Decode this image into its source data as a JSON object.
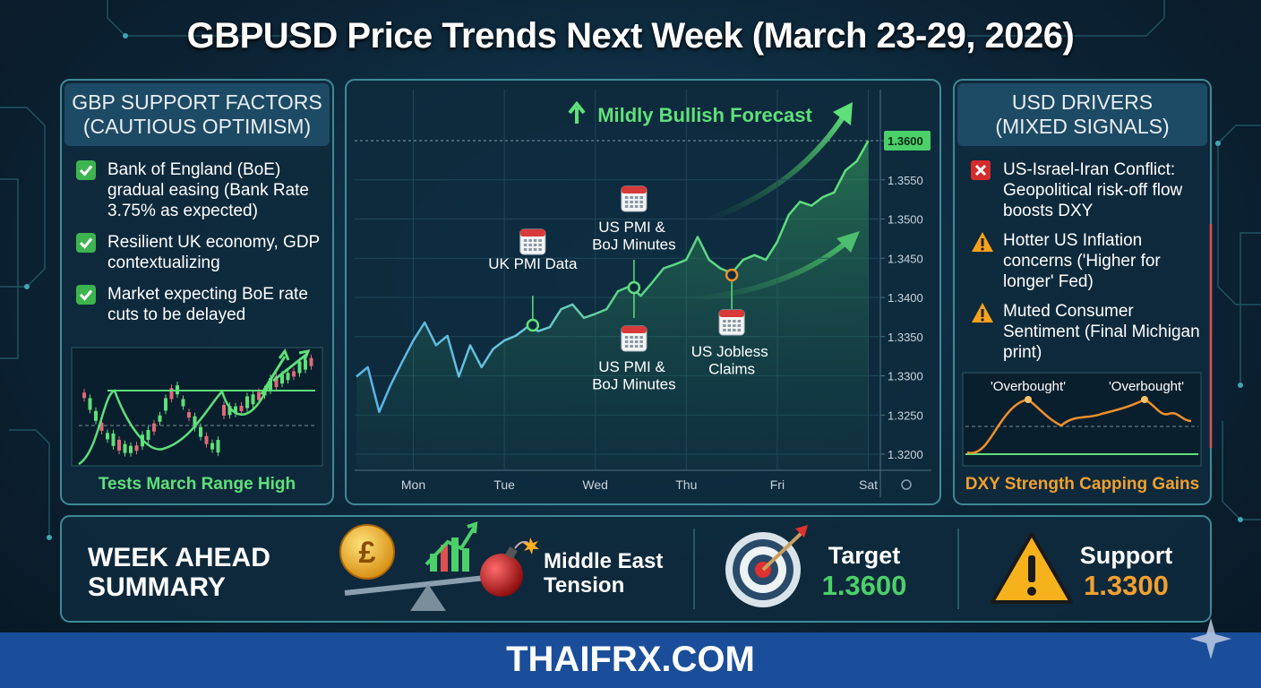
{
  "title": "GBPUSD Price Trends Next Week (March 23-29, 2026)",
  "gbp_panel": {
    "header": [
      "GBP SUPPORT FACTORS",
      "(CAUTIOUS OPTIMISM)"
    ],
    "items": [
      "Bank of England (BoE) gradual easing (Bank Rate 3.75% as expected)",
      "Resilient UK economy, GDP contextualizing",
      "Market expecting BoE rate cuts to be delayed"
    ],
    "caption": "Tests March Range High"
  },
  "chart_data": {
    "type": "line",
    "annotations": [
      "Mildly Bullish Forecast",
      "UK PMI Data",
      "US PMI & BoJ Minutes",
      "US PMI & BoJ Minutes",
      "US Jobless Claims"
    ],
    "categories": [
      null,
      null,
      null,
      null,
      null,
      "Mon",
      null,
      null,
      null,
      null,
      null,
      null,
      null,
      "Tue",
      null,
      null,
      null,
      null,
      null,
      null,
      null,
      "Wed",
      null,
      null,
      null,
      null,
      null,
      null,
      null,
      "Thu",
      null,
      null,
      null,
      null,
      null,
      null,
      null,
      "Fri",
      null,
      null,
      null,
      null,
      null,
      null,
      null,
      "Sat"
    ],
    "values": [
      1.3299,
      1.3311,
      1.3254,
      1.3288,
      1.3317,
      1.3345,
      1.3368,
      1.3339,
      1.3351,
      1.3299,
      1.3339,
      1.3311,
      1.3334,
      1.3345,
      1.3351,
      1.3362,
      1.3357,
      1.3362,
      1.3385,
      1.3391,
      1.3374,
      1.3379,
      1.3385,
      1.3408,
      1.3414,
      1.3402,
      1.3419,
      1.3437,
      1.3442,
      1.3448,
      1.3477,
      1.3448,
      1.3437,
      1.3431,
      1.3448,
      1.3454,
      1.3448,
      1.3471,
      1.3505,
      1.3522,
      1.3517,
      1.3528,
      1.3534,
      1.3562,
      1.3574,
      1.36
    ],
    "color": "#5ab4e6",
    "ylim": [
      1.318,
      1.367
    ],
    "yticks": [
      {
        "value": 1.32,
        "label": "1.3200"
      },
      {
        "value": 1.325,
        "label": "1.3250"
      },
      {
        "value": 1.33,
        "label": "1.3300"
      },
      {
        "value": 1.335,
        "label": "1.3350"
      },
      {
        "value": 1.34,
        "label": "1.3400"
      },
      {
        "value": 1.345,
        "label": "1.3450"
      },
      {
        "value": 1.35,
        "label": "1.3500"
      },
      {
        "value": 1.355,
        "label": "1.3550"
      },
      {
        "value": 1.36,
        "label": "1.3600"
      }
    ],
    "grid": true
  },
  "usd_panel": {
    "header": [
      "USD DRIVERS",
      "(MIXED SIGNALS)"
    ],
    "items": [
      "US-Israel-Iran Conflict: Geopolitical risk-off flow boosts DXY",
      "Hotter US Inflation concerns ('Higher for longer' Fed)",
      "Muted Consumer Sentiment (Final Michigan print)"
    ],
    "overbought": [
      "'Overbought'",
      "'Overbought'"
    ],
    "caption": "DXY Strength Capping Gains"
  },
  "summary": {
    "heading": "WEEK AHEAD SUMMARY",
    "risk": "Middle East Tension",
    "target_label": "Target",
    "target_value": "1.3600",
    "support_label": "Support",
    "support_value": "1.3300"
  },
  "footer": "THAIFRX.COM"
}
